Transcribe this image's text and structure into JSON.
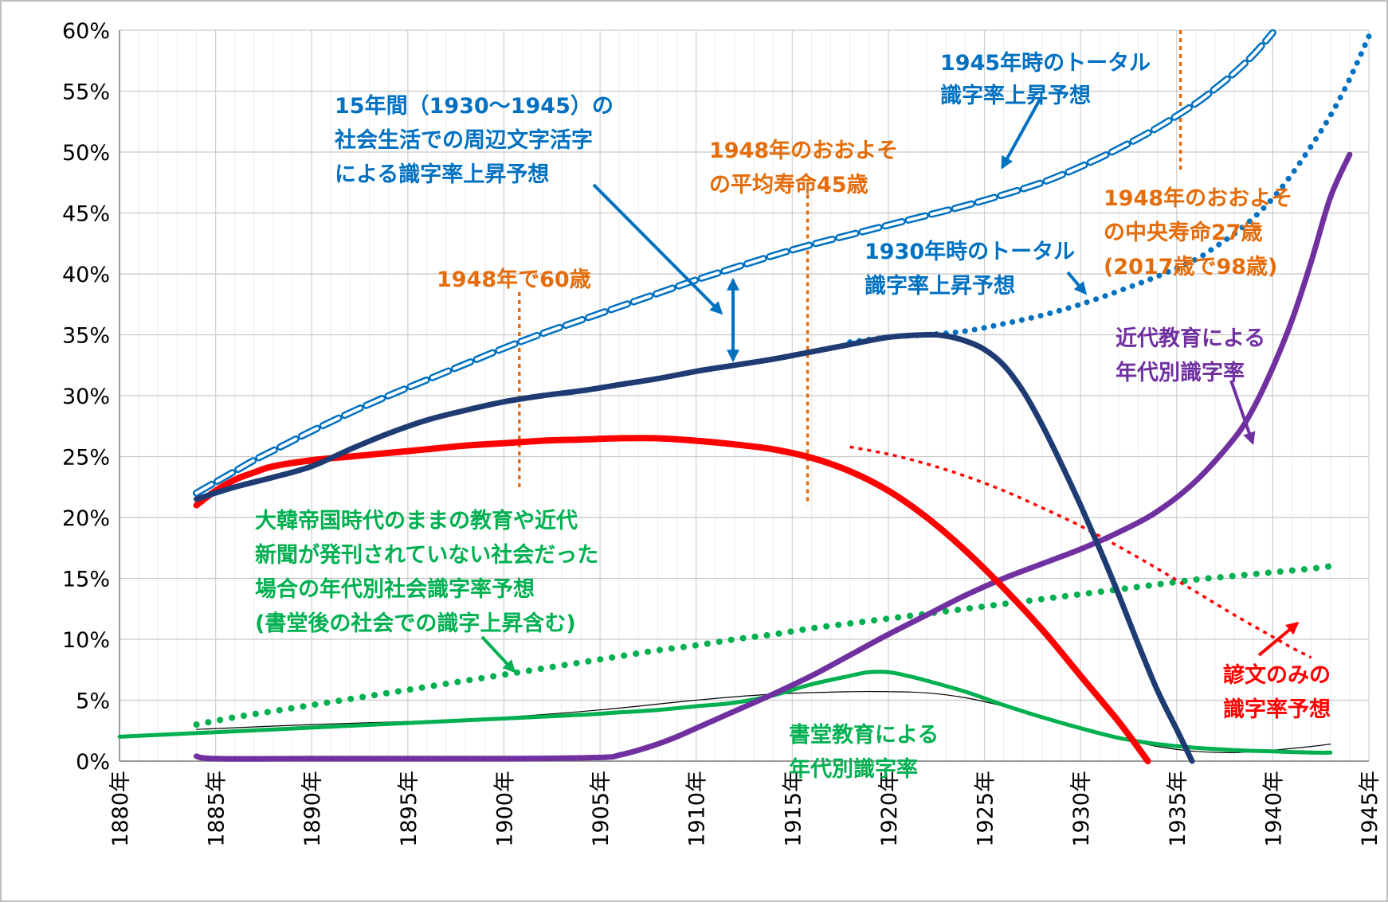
{
  "chart_data": {
    "type": "line",
    "title": "",
    "xlabel": "",
    "ylabel": "",
    "xlim": [
      1880,
      1945
    ],
    "ylim": [
      0,
      60
    ],
    "grid": true,
    "x_tick_labels": [
      "1880年",
      "1885年",
      "1890年",
      "1895年",
      "1900年",
      "1905年",
      "1910年",
      "1915年",
      "1920年",
      "1925年",
      "1930年",
      "1935年",
      "1940年",
      "1945年"
    ],
    "y_tick_labels": [
      "0%",
      "5%",
      "10%",
      "15%",
      "20%",
      "25%",
      "30%",
      "35%",
      "40%",
      "45%",
      "50%",
      "55%",
      "60%"
    ],
    "series": [
      {
        "key": "trend_total_1945",
        "color": "#0070c0",
        "points": [
          [
            1884,
            22
          ],
          [
            1885,
            22.9
          ],
          [
            1886,
            23.8
          ],
          [
            1887,
            24.7
          ],
          [
            1888,
            25.5
          ],
          [
            1889,
            26.3
          ],
          [
            1890,
            27.1
          ],
          [
            1892,
            28.6
          ],
          [
            1894,
            30
          ],
          [
            1896,
            31.3
          ],
          [
            1898,
            32.6
          ],
          [
            1900,
            33.9
          ],
          [
            1902,
            35.1
          ],
          [
            1904,
            36.2
          ],
          [
            1906,
            37.3
          ],
          [
            1908,
            38.4
          ],
          [
            1910,
            39.5
          ],
          [
            1912,
            40.5
          ],
          [
            1914,
            41.5
          ],
          [
            1916,
            42.4
          ],
          [
            1918,
            43.2
          ],
          [
            1920,
            44
          ],
          [
            1922,
            44.8
          ],
          [
            1924,
            45.6
          ],
          [
            1926,
            46.5
          ],
          [
            1928,
            47.5
          ],
          [
            1930,
            48.8
          ],
          [
            1932,
            50.3
          ],
          [
            1934,
            52
          ],
          [
            1936,
            54
          ],
          [
            1937,
            55.2
          ],
          [
            1938,
            56.5
          ],
          [
            1939,
            58
          ],
          [
            1940,
            59.8
          ]
        ]
      },
      {
        "key": "trend_total_1930",
        "color": "#0070c0",
        "points": [
          [
            1918,
            34.4
          ],
          [
            1920,
            34.8
          ],
          [
            1922,
            35
          ],
          [
            1924,
            35.3
          ],
          [
            1926,
            35.9
          ],
          [
            1928,
            36.6
          ],
          [
            1930,
            37.5
          ],
          [
            1932,
            38.6
          ],
          [
            1934,
            39.8
          ],
          [
            1936,
            41.2
          ],
          [
            1937,
            42.2
          ],
          [
            1938,
            43.3
          ],
          [
            1939,
            44.6
          ],
          [
            1940,
            46.2
          ],
          [
            1941,
            48.2
          ],
          [
            1942,
            50.5
          ],
          [
            1943,
            53
          ],
          [
            1944,
            56
          ],
          [
            1945,
            59.5
          ]
        ]
      },
      {
        "key": "total_literacy",
        "color": "#1f3b73",
        "points": [
          [
            1884,
            21.5
          ],
          [
            1886,
            22.5
          ],
          [
            1888,
            23.3
          ],
          [
            1890,
            24.2
          ],
          [
            1892,
            25.6
          ],
          [
            1894,
            26.9
          ],
          [
            1896,
            28
          ],
          [
            1898,
            28.8
          ],
          [
            1900,
            29.5
          ],
          [
            1902,
            30
          ],
          [
            1904,
            30.4
          ],
          [
            1906,
            30.9
          ],
          [
            1908,
            31.4
          ],
          [
            1910,
            32
          ],
          [
            1912,
            32.5
          ],
          [
            1914,
            33
          ],
          [
            1916,
            33.6
          ],
          [
            1918,
            34.2
          ],
          [
            1920,
            34.8
          ],
          [
            1922,
            35
          ],
          [
            1923,
            34.9
          ],
          [
            1924,
            34.5
          ],
          [
            1925,
            33.8
          ],
          [
            1926,
            32.5
          ],
          [
            1927,
            30.4
          ],
          [
            1928,
            27.6
          ],
          [
            1929,
            24.4
          ],
          [
            1930,
            21
          ],
          [
            1931,
            17.4
          ],
          [
            1932,
            13.6
          ],
          [
            1933,
            9.6
          ],
          [
            1934,
            5.8
          ],
          [
            1935,
            2.6
          ],
          [
            1935.8,
            0
          ]
        ]
      },
      {
        "key": "hangul_only",
        "color": "#ff0000",
        "points": [
          [
            1884,
            21
          ],
          [
            1885,
            22.2
          ],
          [
            1886,
            23.1
          ],
          [
            1887,
            23.7
          ],
          [
            1888,
            24.2
          ],
          [
            1890,
            24.7
          ],
          [
            1892,
            25
          ],
          [
            1894,
            25.3
          ],
          [
            1896,
            25.6
          ],
          [
            1898,
            25.9
          ],
          [
            1900,
            26.1
          ],
          [
            1902,
            26.3
          ],
          [
            1904,
            26.4
          ],
          [
            1906,
            26.5
          ],
          [
            1908,
            26.5
          ],
          [
            1910,
            26.3
          ],
          [
            1912,
            26
          ],
          [
            1914,
            25.6
          ],
          [
            1916,
            24.9
          ],
          [
            1918,
            23.8
          ],
          [
            1920,
            22.2
          ],
          [
            1922,
            20
          ],
          [
            1924,
            17.3
          ],
          [
            1926,
            14.2
          ],
          [
            1928,
            10.8
          ],
          [
            1930,
            7
          ],
          [
            1932,
            3.2
          ],
          [
            1933.5,
            0
          ]
        ]
      },
      {
        "key": "hangul_only_trend",
        "color": "#ff0000",
        "points": [
          [
            1918,
            25.8
          ],
          [
            1920,
            25.2
          ],
          [
            1922,
            24.4
          ],
          [
            1924,
            23.4
          ],
          [
            1926,
            22.2
          ],
          [
            1928,
            20.8
          ],
          [
            1930,
            19.3
          ],
          [
            1932,
            17.6
          ],
          [
            1934,
            15.8
          ],
          [
            1936,
            13.9
          ],
          [
            1938,
            12
          ],
          [
            1940,
            10.2
          ],
          [
            1941,
            9.3
          ],
          [
            1942,
            8.5
          ]
        ]
      },
      {
        "key": "modern_education",
        "color": "#7030a0",
        "points": [
          [
            1884,
            0.4
          ],
          [
            1885,
            0.2
          ],
          [
            1890,
            0.2
          ],
          [
            1895,
            0.2
          ],
          [
            1900,
            0.2
          ],
          [
            1905,
            0.3
          ],
          [
            1906,
            0.5
          ],
          [
            1907,
            0.9
          ],
          [
            1908,
            1.4
          ],
          [
            1909,
            2
          ],
          [
            1910,
            2.7
          ],
          [
            1912,
            4.1
          ],
          [
            1914,
            5.5
          ],
          [
            1916,
            7
          ],
          [
            1918,
            8.7
          ],
          [
            1920,
            10.4
          ],
          [
            1922,
            12
          ],
          [
            1924,
            13.6
          ],
          [
            1926,
            15
          ],
          [
            1928,
            16.2
          ],
          [
            1930,
            17.4
          ],
          [
            1932,
            18.8
          ],
          [
            1934,
            20.5
          ],
          [
            1936,
            23
          ],
          [
            1938,
            26.5
          ],
          [
            1939,
            29
          ],
          [
            1940,
            32.3
          ],
          [
            1941,
            36.2
          ],
          [
            1942,
            41
          ],
          [
            1943,
            46.3
          ],
          [
            1944,
            49.8
          ]
        ]
      },
      {
        "key": "no_modern_society",
        "color": "#00b050",
        "points": [
          [
            1884,
            3
          ],
          [
            1886,
            3.6
          ],
          [
            1888,
            4.1
          ],
          [
            1890,
            4.6
          ],
          [
            1892,
            5.1
          ],
          [
            1894,
            5.6
          ],
          [
            1896,
            6.1
          ],
          [
            1898,
            6.6
          ],
          [
            1900,
            7.1
          ],
          [
            1902,
            7.6
          ],
          [
            1904,
            8.1
          ],
          [
            1906,
            8.6
          ],
          [
            1908,
            9.1
          ],
          [
            1910,
            9.5
          ],
          [
            1912,
            10
          ],
          [
            1914,
            10.4
          ],
          [
            1916,
            10.9
          ],
          [
            1918,
            11.3
          ],
          [
            1920,
            11.7
          ],
          [
            1922,
            12.1
          ],
          [
            1924,
            12.5
          ],
          [
            1926,
            12.9
          ],
          [
            1928,
            13.3
          ],
          [
            1930,
            13.7
          ],
          [
            1932,
            14.1
          ],
          [
            1934,
            14.5
          ],
          [
            1936,
            14.9
          ],
          [
            1938,
            15.2
          ],
          [
            1940,
            15.5
          ],
          [
            1942,
            15.8
          ],
          [
            1943,
            16
          ]
        ]
      },
      {
        "key": "seodang_education",
        "color": "#00b050",
        "points": [
          [
            1880,
            2
          ],
          [
            1884,
            2.3
          ],
          [
            1888,
            2.6
          ],
          [
            1892,
            2.9
          ],
          [
            1896,
            3.2
          ],
          [
            1900,
            3.5
          ],
          [
            1904,
            3.8
          ],
          [
            1906,
            4
          ],
          [
            1908,
            4.2
          ],
          [
            1910,
            4.5
          ],
          [
            1912,
            4.8
          ],
          [
            1914,
            5.4
          ],
          [
            1916,
            6.3
          ],
          [
            1918,
            7
          ],
          [
            1919,
            7.3
          ],
          [
            1920,
            7.3
          ],
          [
            1921,
            7
          ],
          [
            1922,
            6.6
          ],
          [
            1924,
            5.7
          ],
          [
            1926,
            4.6
          ],
          [
            1928,
            3.6
          ],
          [
            1930,
            2.7
          ],
          [
            1932,
            1.9
          ],
          [
            1934,
            1.4
          ],
          [
            1936,
            1.1
          ],
          [
            1938,
            0.9
          ],
          [
            1940,
            0.8
          ],
          [
            1942,
            0.7
          ],
          [
            1943,
            0.7
          ]
        ]
      },
      {
        "key": "seodang_thin",
        "color": "#000000",
        "points": [
          [
            1884,
            2.6
          ],
          [
            1890,
            3
          ],
          [
            1896,
            3.3
          ],
          [
            1900,
            3.6
          ],
          [
            1905,
            4.2
          ],
          [
            1910,
            5
          ],
          [
            1914,
            5.5
          ],
          [
            1918,
            5.7
          ],
          [
            1920,
            5.7
          ],
          [
            1922,
            5.6
          ],
          [
            1924,
            5.2
          ],
          [
            1926,
            4.5
          ],
          [
            1928,
            3.6
          ],
          [
            1930,
            2.7
          ],
          [
            1932,
            1.9
          ],
          [
            1934,
            1.2
          ],
          [
            1936,
            0.8
          ],
          [
            1938,
            0.7
          ],
          [
            1940,
            0.9
          ],
          [
            1942,
            1.2
          ],
          [
            1943,
            1.4
          ]
        ]
      }
    ],
    "vlines": [
      {
        "x": 1900.8,
        "y0": 22.5,
        "y1": 38.5,
        "color": "#e46c0a"
      },
      {
        "x": 1915.8,
        "y0": 21,
        "y1": 46.5,
        "color": "#e46c0a"
      },
      {
        "x": 1935.2,
        "y0": 48.5,
        "y1": 60,
        "color": "#e46c0a"
      }
    ],
    "annotations": {
      "a1": {
        "text": "1945年時のトータル",
        "color": "#0070c0"
      },
      "a2": {
        "text": "識字率上昇予想",
        "color": "#0070c0"
      },
      "b1": {
        "text": "15年間（1930～1945）の",
        "color": "#0070c0"
      },
      "b2": {
        "text": "社会生活での周辺文字活字",
        "color": "#0070c0"
      },
      "b3": {
        "text": "による識字率上昇予想",
        "color": "#0070c0"
      },
      "c1": {
        "text": "1948年のおおよそ",
        "color": "#e46c0a"
      },
      "c2": {
        "text": "の平均寿命45歳",
        "color": "#e46c0a"
      },
      "d1": {
        "text": "1948年のおおよそ",
        "color": "#e46c0a"
      },
      "d2": {
        "text": "の中央寿命27歳",
        "color": "#e46c0a"
      },
      "d3": {
        "text": "(2017歳で98歳)",
        "color": "#e46c0a"
      },
      "e1": {
        "text": "1930年時のトータル",
        "color": "#0070c0"
      },
      "e2": {
        "text": "識字率上昇予想",
        "color": "#0070c0"
      },
      "f1": {
        "text": "1948年で60歳",
        "color": "#e46c0a"
      },
      "g1": {
        "text": "近代教育による",
        "color": "#7030a0"
      },
      "g2": {
        "text": "年代別識字率",
        "color": "#7030a0"
      },
      "h1": {
        "text": "大韓帝国時代のままの教育や近代",
        "color": "#00b050"
      },
      "h2": {
        "text": "新聞が発刊されていない社会だった",
        "color": "#00b050"
      },
      "h3": {
        "text": "場合の年代別社会識字率予想",
        "color": "#00b050"
      },
      "h4": {
        "text": "(書堂後の社会での識字上昇含む)",
        "color": "#00b050"
      },
      "i1": {
        "text": "諺文のみの",
        "color": "#ff0000"
      },
      "i2": {
        "text": "識字率予想",
        "color": "#ff0000"
      },
      "j1": {
        "text": "書堂教育による",
        "color": "#00b050"
      },
      "j2": {
        "text": "年代別識字率",
        "color": "#00b050"
      }
    }
  }
}
